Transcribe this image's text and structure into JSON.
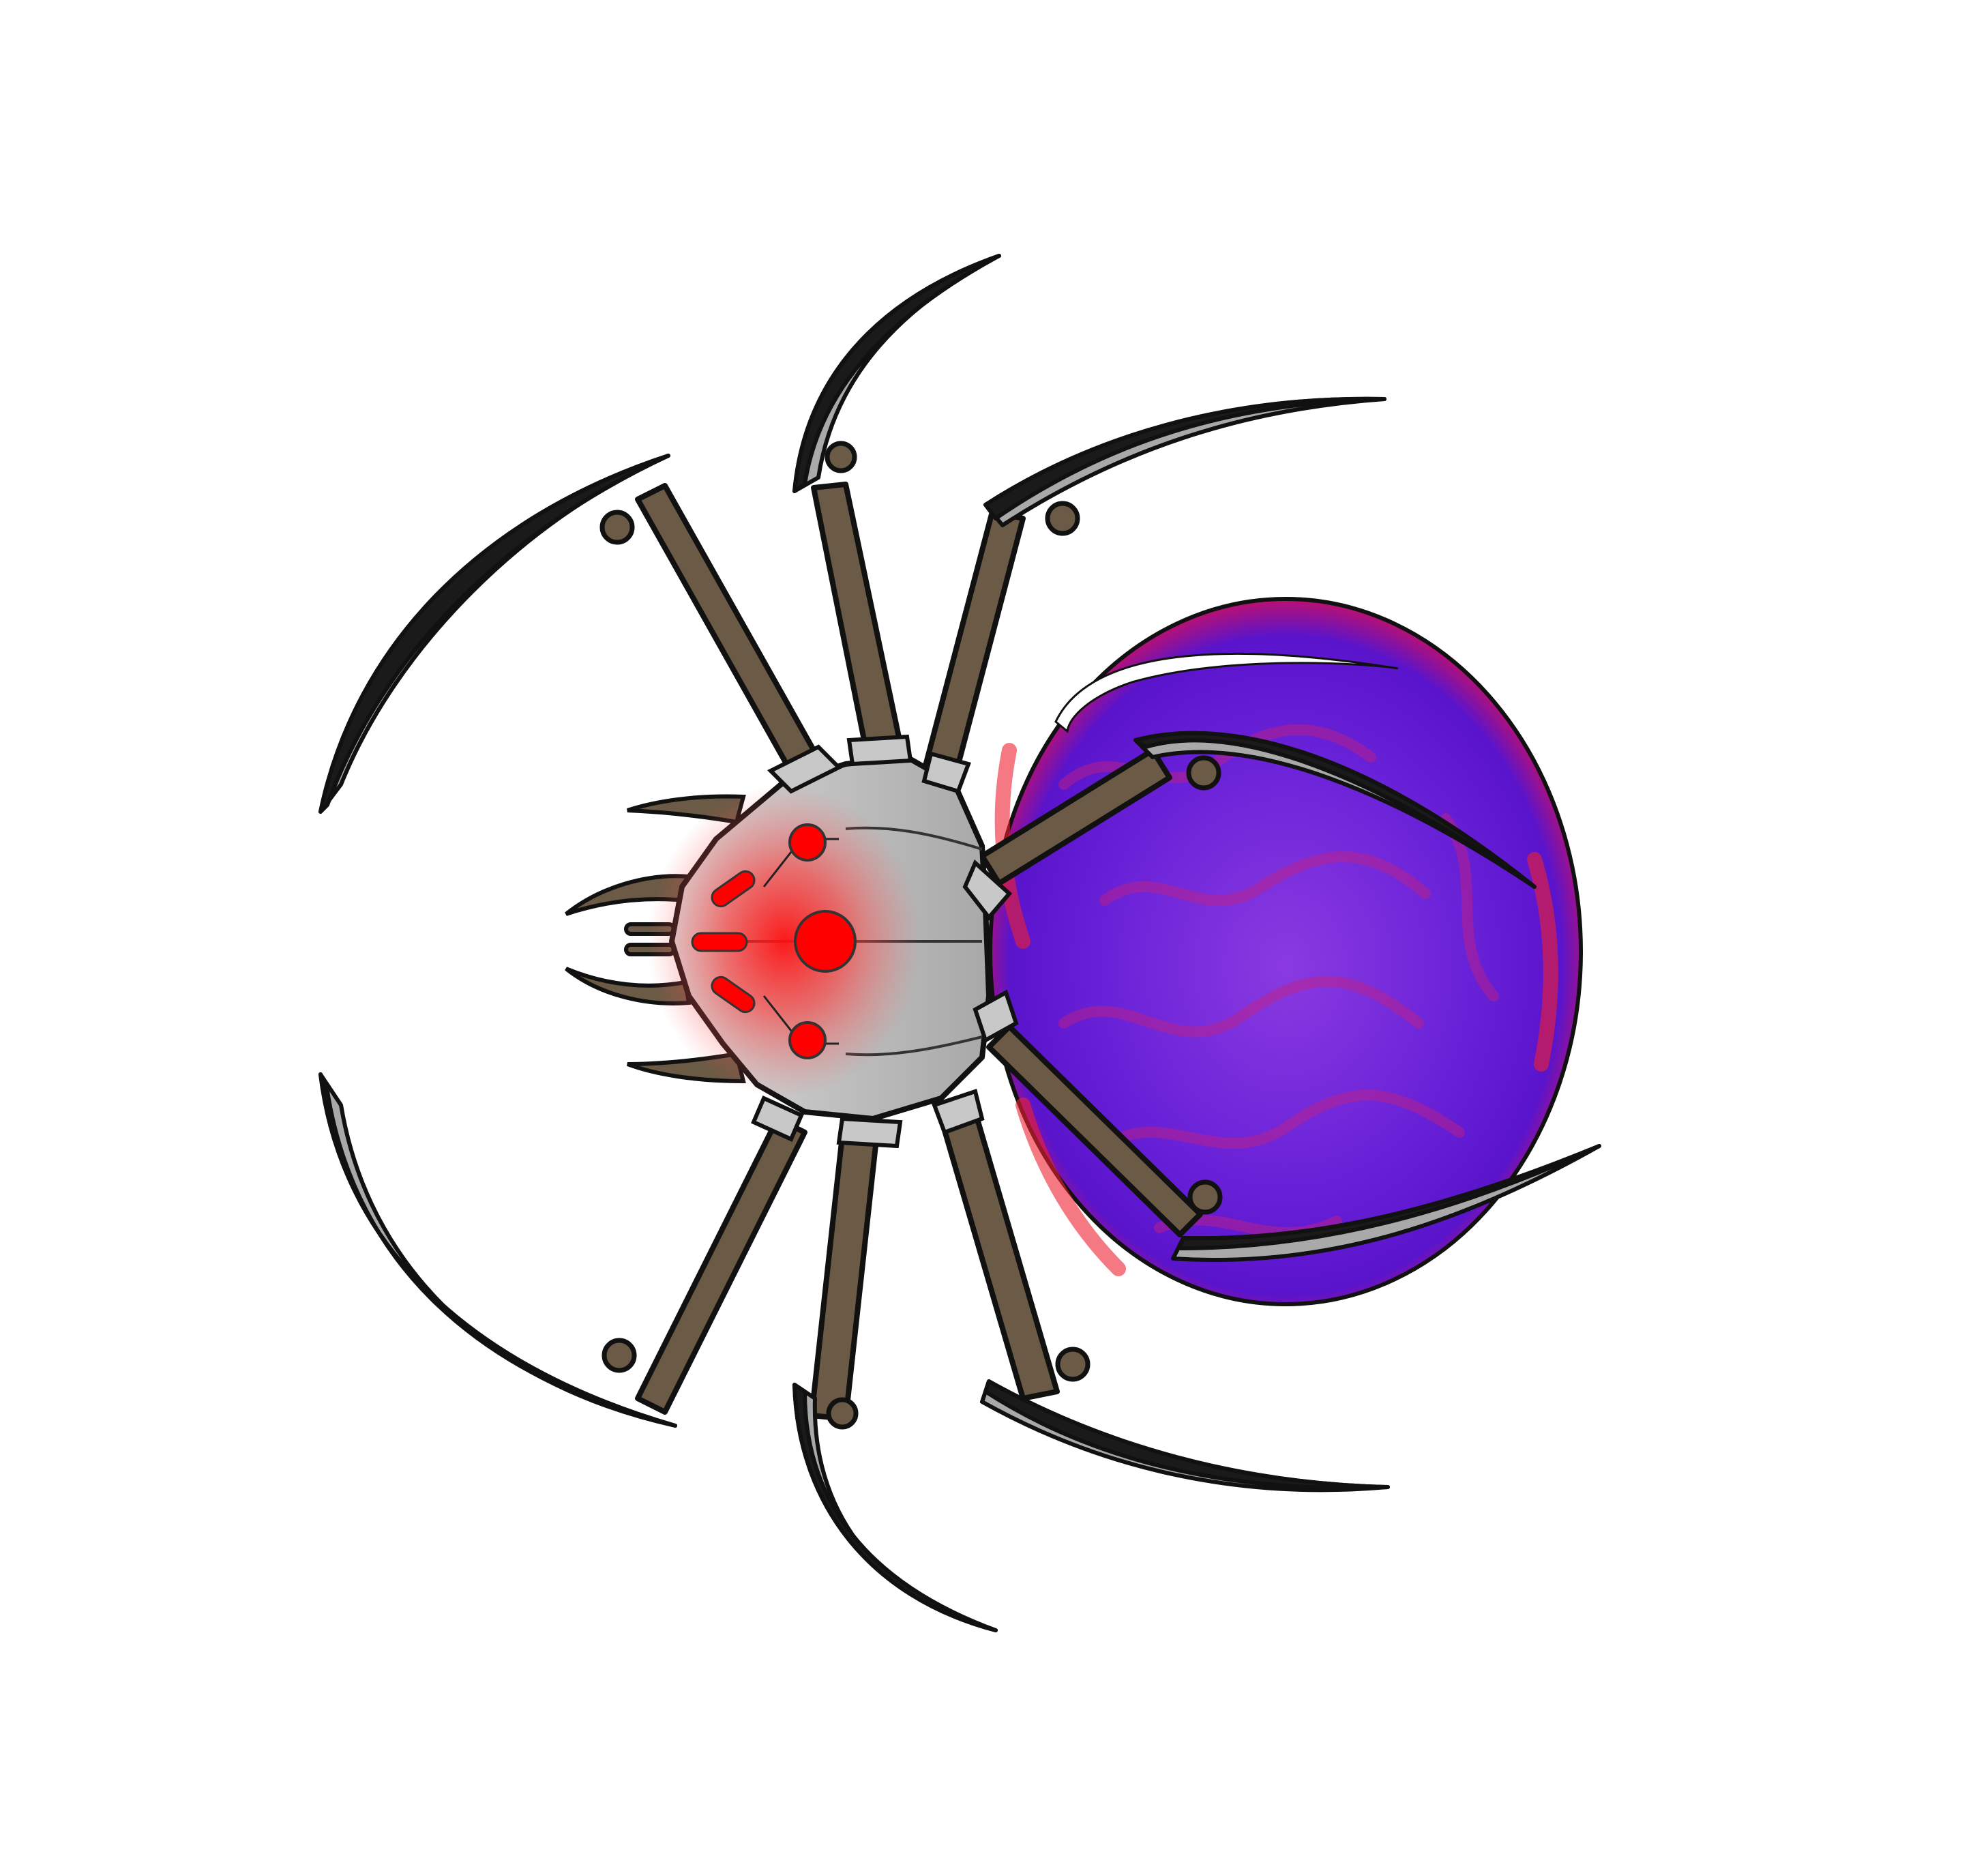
{
  "illustration": {
    "subject": "robotic spider",
    "colors": {
      "background": "#ffffff",
      "outline": "#111111",
      "abdomen_rim": "#e8101a",
      "abdomen_core": "#6a22d8",
      "abdomen_deep": "#4a12c9",
      "abdomen_swirl": "#c0207a",
      "leg_segment": "#6b5a45",
      "blade": "#a9a9a9",
      "blade_shadow": "#1a1a1a",
      "head_plate": "#b9b9b9",
      "head_plate_light": "#dddddd",
      "eye_glow": "#ff2020",
      "eye_core": "#ff0000"
    }
  }
}
